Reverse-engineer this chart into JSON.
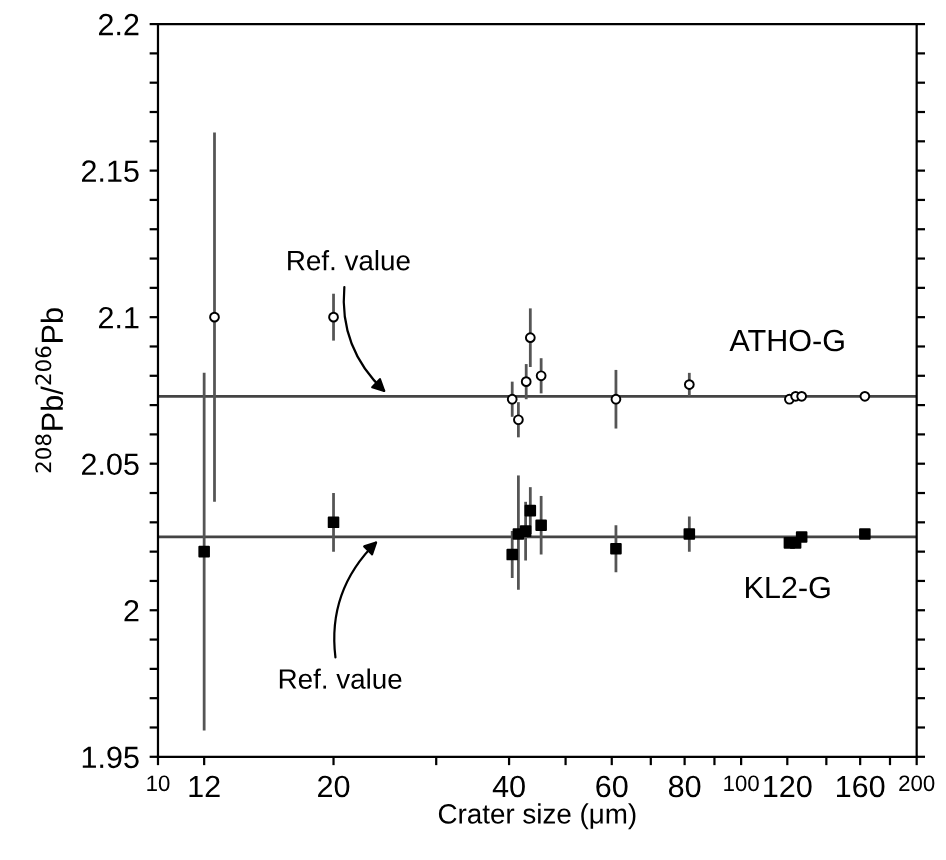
{
  "chart_data": {
    "type": "scatter",
    "xlabel": "Crater size (μm)",
    "ylabel": "$^{208}$Pb/$^{206}$Pb",
    "log": "x",
    "xlim": [
      10,
      200
    ],
    "ylim": [
      1.95,
      2.2
    ],
    "xticks": [
      10,
      12,
      20,
      {
        "value": 30,
        "label": null
      },
      40,
      {
        "value": 50,
        "label": null
      },
      60,
      {
        "value": 70,
        "label": null
      },
      80,
      {
        "value": 90,
        "label": null
      },
      100,
      120,
      {
        "value": 140,
        "label": null
      },
      160,
      {
        "value": 180,
        "label": null
      },
      200
    ],
    "yticks": [
      1.95,
      {
        "value": 1.96,
        "label": null
      },
      {
        "value": 1.97,
        "label": null
      },
      {
        "value": 1.98,
        "label": null
      },
      {
        "value": 1.99,
        "label": null
      },
      2,
      {
        "value": 2.01,
        "label": null
      },
      {
        "value": 2.02,
        "label": null
      },
      {
        "value": 2.03,
        "label": null
      },
      {
        "value": 2.04,
        "label": null
      },
      2.05,
      {
        "value": 2.06,
        "label": null
      },
      {
        "value": 2.07,
        "label": null
      },
      {
        "value": 2.08,
        "label": null
      },
      {
        "value": 2.09,
        "label": null
      },
      2.1,
      {
        "value": 2.11,
        "label": null
      },
      {
        "value": 2.12,
        "label": null
      },
      {
        "value": 2.13,
        "label": null
      },
      {
        "value": 2.14,
        "label": null
      },
      2.15,
      {
        "value": 2.16,
        "label": null
      },
      {
        "value": 2.17,
        "label": null
      },
      {
        "value": 2.18,
        "label": null
      },
      {
        "value": 2.19,
        "label": null
      },
      2.2
    ],
    "grid": false,
    "legend": "right",
    "series": [
      {
        "name": "ATHO-G",
        "color": "#000000",
        "marker": "circle",
        "x": [
          12.5,
          20,
          40.5,
          41.5,
          42.8,
          43.5,
          45.4,
          61,
          81.5,
          121,
          124,
          127,
          163
        ],
        "values": [
          2.1,
          2.1,
          2.072,
          2.065,
          2.078,
          2.093,
          2.08,
          2.072,
          2.077,
          2.072,
          2.073,
          2.073,
          2.073
        ],
        "errors": [
          0.063,
          0.008,
          0.006,
          0.006,
          0.006,
          0.01,
          0.006,
          0.01,
          0.004,
          null,
          null,
          null,
          null
        ]
      },
      {
        "name": "KL2-G",
        "color": "#000000",
        "marker": "square",
        "x": [
          12,
          20,
          40.5,
          41.5,
          42.7,
          43.5,
          45.4,
          61,
          81.5,
          121,
          124,
          127,
          163
        ],
        "values": [
          2.02,
          2.03,
          2.019,
          2.026,
          2.027,
          2.034,
          2.029,
          2.021,
          2.026,
          2.023,
          2.023,
          2.025,
          2.026
        ],
        "errors": [
          0.061,
          0.01,
          0.008,
          [
            2.007,
            2.046
          ],
          0.01,
          0.008,
          0.01,
          0.008,
          0.006,
          null,
          null,
          null,
          null
        ]
      }
    ],
    "ref_lines": [
      {
        "axis": "y",
        "value": 2.073,
        "color": "#444444"
      },
      {
        "axis": "y",
        "value": 2.025,
        "color": "#444444"
      }
    ],
    "annotations": [
      {
        "text": "Ref. value",
        "x": 25,
        "y": 2.073
      },
      {
        "text": "Ref. value",
        "x": 24.2,
        "y": 2.025
      }
    ]
  }
}
